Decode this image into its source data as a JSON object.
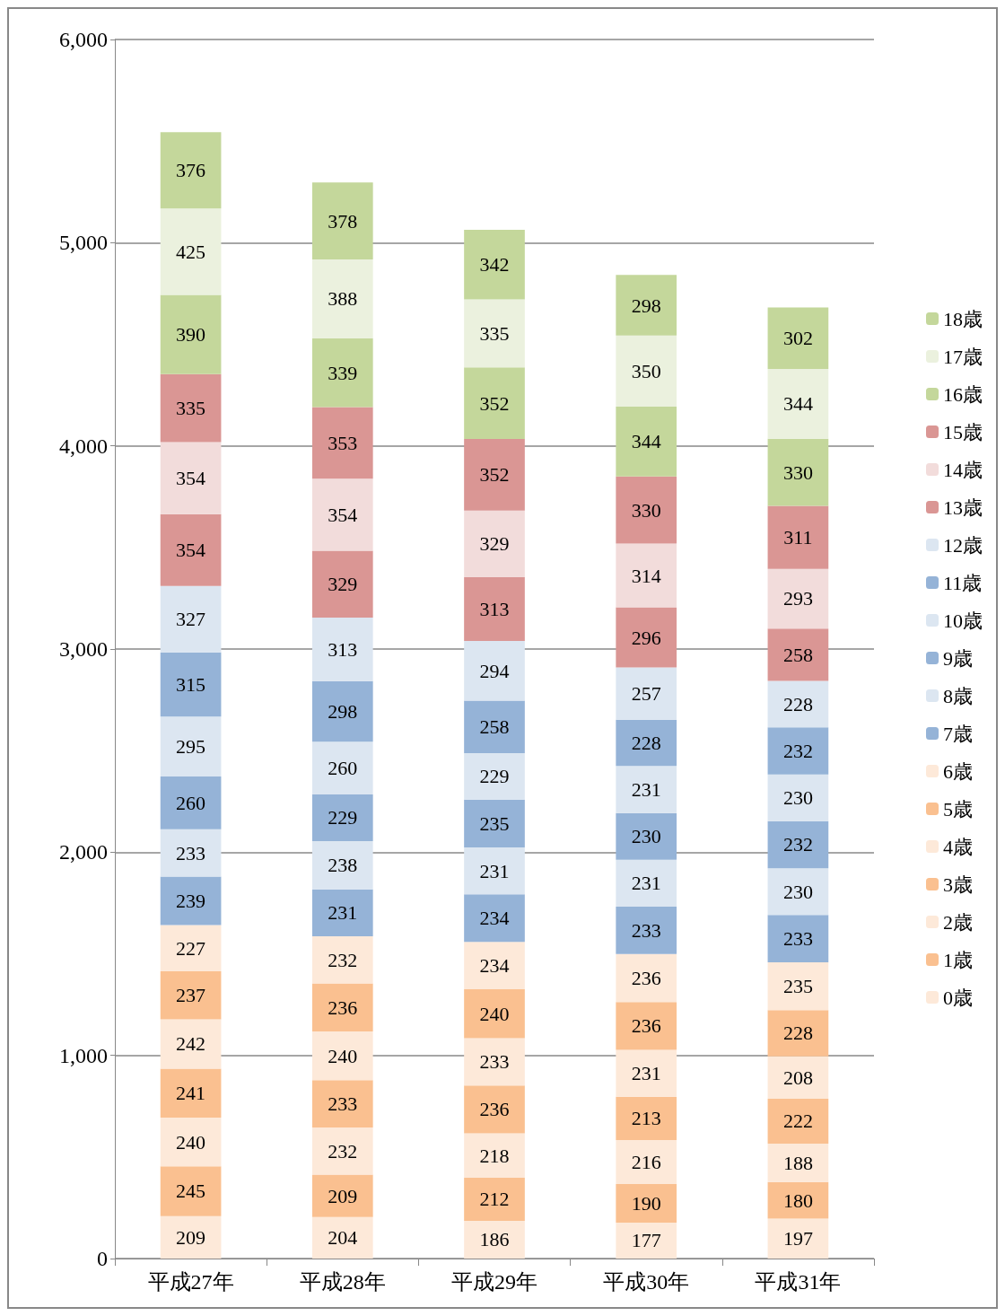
{
  "chart_data": {
    "type": "bar",
    "stacked": true,
    "categories": [
      "平成27年",
      "平成28年",
      "平成29年",
      "平成30年",
      "平成31年"
    ],
    "ylim": [
      0,
      6000
    ],
    "yticks": [
      {
        "value": 0,
        "label": "0"
      },
      {
        "value": 1000,
        "label": "1,000"
      },
      {
        "value": 2000,
        "label": "2,000"
      },
      {
        "value": 3000,
        "label": "3,000"
      },
      {
        "value": 4000,
        "label": "4,000"
      },
      {
        "value": 5000,
        "label": "5,000"
      },
      {
        "value": 6000,
        "label": "6,000"
      }
    ],
    "grid": "y",
    "legend": "right",
    "data_labels": true,
    "series": [
      {
        "name": "0歳",
        "color": "#fde9d9",
        "values": [
          209,
          204,
          186,
          177,
          197
        ]
      },
      {
        "name": "1歳",
        "color": "#fac090",
        "values": [
          245,
          209,
          212,
          190,
          180
        ]
      },
      {
        "name": "2歳",
        "color": "#fde9d9",
        "values": [
          240,
          232,
          218,
          216,
          188
        ]
      },
      {
        "name": "3歳",
        "color": "#fac090",
        "values": [
          241,
          233,
          236,
          213,
          222
        ]
      },
      {
        "name": "4歳",
        "color": "#fde9d9",
        "values": [
          242,
          240,
          233,
          231,
          208
        ]
      },
      {
        "name": "5歳",
        "color": "#fac090",
        "values": [
          237,
          236,
          240,
          236,
          228
        ]
      },
      {
        "name": "6歳",
        "color": "#fde9d9",
        "values": [
          227,
          232,
          234,
          236,
          235
        ]
      },
      {
        "name": "7歳",
        "color": "#95b3d7",
        "values": [
          239,
          231,
          234,
          233,
          233
        ]
      },
      {
        "name": "8歳",
        "color": "#dce6f1",
        "values": [
          233,
          238,
          231,
          231,
          230
        ]
      },
      {
        "name": "9歳",
        "color": "#95b3d7",
        "values": [
          260,
          229,
          235,
          230,
          232
        ]
      },
      {
        "name": "10歳",
        "color": "#dce6f1",
        "values": [
          295,
          260,
          229,
          231,
          230
        ]
      },
      {
        "name": "11歳",
        "color": "#95b3d7",
        "values": [
          315,
          298,
          258,
          228,
          232
        ]
      },
      {
        "name": "12歳",
        "color": "#dce6f1",
        "values": [
          327,
          313,
          294,
          257,
          228
        ]
      },
      {
        "name": "13歳",
        "color": "#da9694",
        "values": [
          354,
          329,
          313,
          296,
          258
        ]
      },
      {
        "name": "14歳",
        "color": "#f2dcdb",
        "values": [
          354,
          354,
          329,
          314,
          293
        ]
      },
      {
        "name": "15歳",
        "color": "#da9694",
        "values": [
          335,
          353,
          352,
          330,
          311
        ]
      },
      {
        "name": "16歳",
        "color": "#c4d79b",
        "values": [
          390,
          339,
          352,
          344,
          330
        ]
      },
      {
        "name": "17歳",
        "color": "#ebf1de",
        "values": [
          425,
          388,
          335,
          350,
          344
        ]
      },
      {
        "name": "18歳",
        "color": "#c4d79b",
        "values": [
          376,
          378,
          342,
          298,
          302
        ]
      }
    ]
  }
}
